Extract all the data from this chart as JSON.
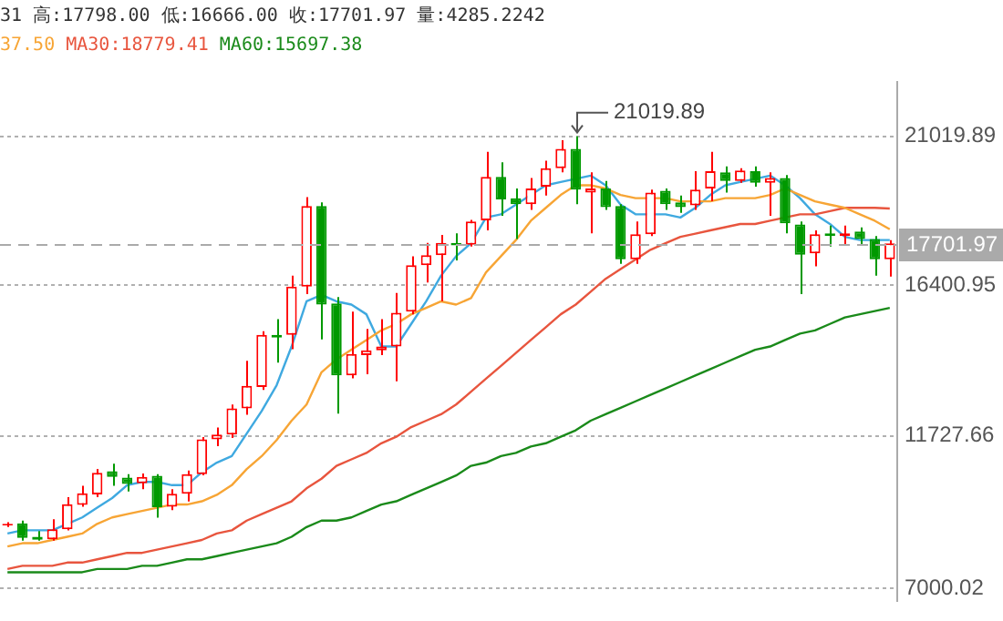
{
  "chart_data": {
    "type": "candlestick",
    "categories": [
      null,
      null,
      null,
      null,
      null,
      null,
      null,
      null,
      null,
      null,
      null,
      null,
      null,
      null,
      null,
      null,
      null,
      null,
      null,
      null,
      null,
      null,
      null,
      null,
      null,
      null,
      null,
      null,
      null,
      null,
      null,
      null,
      null,
      null,
      null,
      null,
      null,
      null,
      null,
      null,
      null,
      null,
      null,
      null,
      null,
      null,
      null,
      null,
      null,
      null,
      null,
      null,
      null,
      null,
      null,
      null,
      null,
      null,
      null,
      null
    ],
    "ohlc": [
      [
        8950,
        9050,
        8900,
        9000
      ],
      [
        9016,
        9102,
        8476,
        8562
      ],
      [
        8600,
        8778,
        8476,
        8510
      ],
      [
        8524,
        9140,
        8476,
        8832
      ],
      [
        8832,
        9826,
        8798,
        9610
      ],
      [
        9590,
        10182,
        9534,
        9950
      ],
      [
        9913,
        10706,
        9826,
        10582
      ],
      [
        10636,
        10868,
        10182,
        10454
      ],
      [
        10436,
        10544,
        10004,
        10236
      ],
      [
        10260,
        10562,
        10076,
        10454
      ],
      [
        10490,
        10544,
        9194,
        9518
      ],
      [
        9534,
        10076,
        9428,
        9934
      ],
      [
        9934,
        10652,
        9696,
        10544
      ],
      [
        10544,
        11694,
        10506,
        11624
      ],
      [
        11624,
        11986,
        11408,
        11768
      ],
      [
        11768,
        12704,
        11660,
        12580
      ],
      [
        12580,
        14054,
        12380,
        13282
      ],
      [
        13244,
        14972,
        13154,
        14864
      ],
      [
        14864,
        15350,
        14000,
        14774
      ],
      [
        14864,
        16700,
        14414,
        16360
      ],
      [
        16360,
        19130,
        16124,
        18860
      ],
      [
        18860,
        18968,
        14718,
        15800
      ],
      [
        15836,
        16036,
        12418,
        13606
      ],
      [
        13606,
        15584,
        13514,
        14270
      ],
      [
        14234,
        15044,
        13640,
        14378
      ],
      [
        14378,
        15350,
        14234,
        14502
      ],
      [
        14502,
        16160,
        13424,
        15548
      ],
      [
        15584,
        17294,
        15496,
        17024
      ],
      [
        17024,
        17710,
        16484,
        17332
      ],
      [
        17332,
        17958,
        15906,
        17710
      ],
      [
        17710,
        18012,
        17170,
        17634
      ],
      [
        17656,
        18428,
        17602,
        18374
      ],
      [
        18412,
        20534,
        18104,
        19762
      ],
      [
        19762,
        20210,
        18552,
        19060
      ],
      [
        19094,
        19400,
        17834,
        18914
      ],
      [
        18914,
        19724,
        18736,
        19400
      ],
      [
        19454,
        20264,
        19184,
        20032
      ],
      [
        20032,
        20896,
        19902,
        20626
      ],
      [
        20626,
        21019.89,
        18914,
        19364
      ],
      [
        19276,
        19902,
        18012,
        19400
      ],
      [
        19400,
        19632,
        18736,
        18822
      ],
      [
        18860,
        18914,
        17062,
        17202
      ],
      [
        17202,
        18374,
        17062,
        17980
      ],
      [
        17980,
        19364,
        17926,
        19276
      ],
      [
        19330,
        19400,
        18736,
        18914
      ],
      [
        18968,
        19184,
        18644,
        18822
      ],
      [
        18878,
        19940,
        18736,
        19364
      ],
      [
        19400,
        20534,
        19006,
        19940
      ],
      [
        19902,
        20086,
        19276,
        19632
      ],
      [
        19632,
        20032,
        19578,
        19956
      ],
      [
        19940,
        20086,
        19454,
        19578
      ],
      [
        19578,
        19902,
        18552,
        19724
      ],
      [
        19724,
        19816,
        18012,
        18320
      ],
      [
        18284,
        18374,
        16124,
        17348
      ],
      [
        17386,
        18104,
        16986,
        17980
      ],
      [
        18012,
        18250,
        17602,
        17926
      ],
      [
        17926,
        18250,
        17656,
        18012
      ],
      [
        18066,
        18196,
        17656,
        17834
      ],
      [
        17834,
        17926,
        16700,
        17202
      ],
      [
        17202,
        17798,
        16666,
        17701.97
      ]
    ],
    "series": [
      {
        "type": "line",
        "color": "#f7a535",
        "values": [
          8300,
          8400,
          8400,
          8500,
          8600,
          8700,
          9000,
          9200,
          9300,
          9400,
          9500,
          9600,
          9600,
          9700,
          9900,
          10200,
          10700,
          11100,
          11600,
          12200,
          12700,
          13700,
          14100,
          14400,
          14700,
          15000,
          15200,
          15500,
          15700,
          15900,
          15800,
          16000,
          16800,
          17300,
          17800,
          18400,
          18800,
          19200,
          19500,
          19500,
          19400,
          19200,
          19100,
          19100,
          19100,
          19000,
          19000,
          19000,
          19100,
          19100,
          19100,
          19200,
          19400,
          19200,
          19000,
          18900,
          18800,
          18600,
          18400,
          18137.5
        ]
      },
      {
        "type": "line",
        "color": "#e8553e",
        "values": [
          7600,
          7700,
          7700,
          7700,
          7800,
          7800,
          7900,
          8000,
          8100,
          8100,
          8200,
          8300,
          8400,
          8500,
          8700,
          8800,
          9100,
          9300,
          9500,
          9700,
          10100,
          10400,
          10800,
          11000,
          11200,
          11500,
          11700,
          12000,
          12200,
          12400,
          12700,
          13100,
          13500,
          13900,
          14300,
          14700,
          15100,
          15500,
          15800,
          16200,
          16600,
          16900,
          17200,
          17500,
          17700,
          17900,
          18000,
          18100,
          18200,
          18300,
          18300,
          18400,
          18500,
          18600,
          18600,
          18700,
          18800,
          18800,
          18800,
          18779.41
        ]
      },
      {
        "type": "line",
        "color": "#1a8a1a",
        "values": [
          7500,
          7500,
          7500,
          7500,
          7500,
          7500,
          7600,
          7600,
          7600,
          7700,
          7700,
          7800,
          7900,
          7900,
          8000,
          8100,
          8200,
          8300,
          8400,
          8600,
          8900,
          9100,
          9100,
          9200,
          9400,
          9600,
          9700,
          9900,
          10100,
          10300,
          10500,
          10800,
          10900,
          11100,
          11200,
          11400,
          11500,
          11700,
          11900,
          12200,
          12400,
          12600,
          12800,
          13000,
          13200,
          13400,
          13600,
          13800,
          14000,
          14200,
          14400,
          14500,
          14700,
          14900,
          15000,
          15200,
          15400,
          15500,
          15600,
          15697.38
        ]
      },
      {
        "type": "line",
        "color": "#3fa9e0",
        "values": [
          8700,
          8800,
          8800,
          8800,
          9000,
          9200,
          9500,
          9800,
          10200,
          10300,
          10300,
          10200,
          10200,
          10600,
          10900,
          11100,
          11800,
          12500,
          13300,
          14500,
          15900,
          16100,
          15900,
          15800,
          15500,
          14500,
          14500,
          15200,
          15900,
          16700,
          17300,
          17700,
          18500,
          18600,
          18900,
          19200,
          19500,
          19600,
          19700,
          19800,
          19500,
          18900,
          18600,
          18600,
          18600,
          18500,
          18800,
          19200,
          19500,
          19600,
          19700,
          19800,
          19500,
          19100,
          18600,
          18300,
          17900,
          17800,
          17800,
          17800
        ]
      }
    ],
    "ylim": [
      6620,
      22704
    ],
    "yticks": [
      21019.89,
      16400.95,
      11727.66,
      7000.02
    ],
    "grid": "y",
    "tick_labels": "y",
    "ref_lines": [
      {
        "axis": "y",
        "value": 17701.97,
        "label": "17701.97",
        "color": "#aaaaaa",
        "line_style": "dashed"
      }
    ],
    "annotations": [
      "31 高:17798.00 低:16666.00 收:17701.97 量:4285.2242",
      "37.50",
      "MA30:18779.41",
      "MA60:15697.38",
      "21019.89"
    ]
  }
}
